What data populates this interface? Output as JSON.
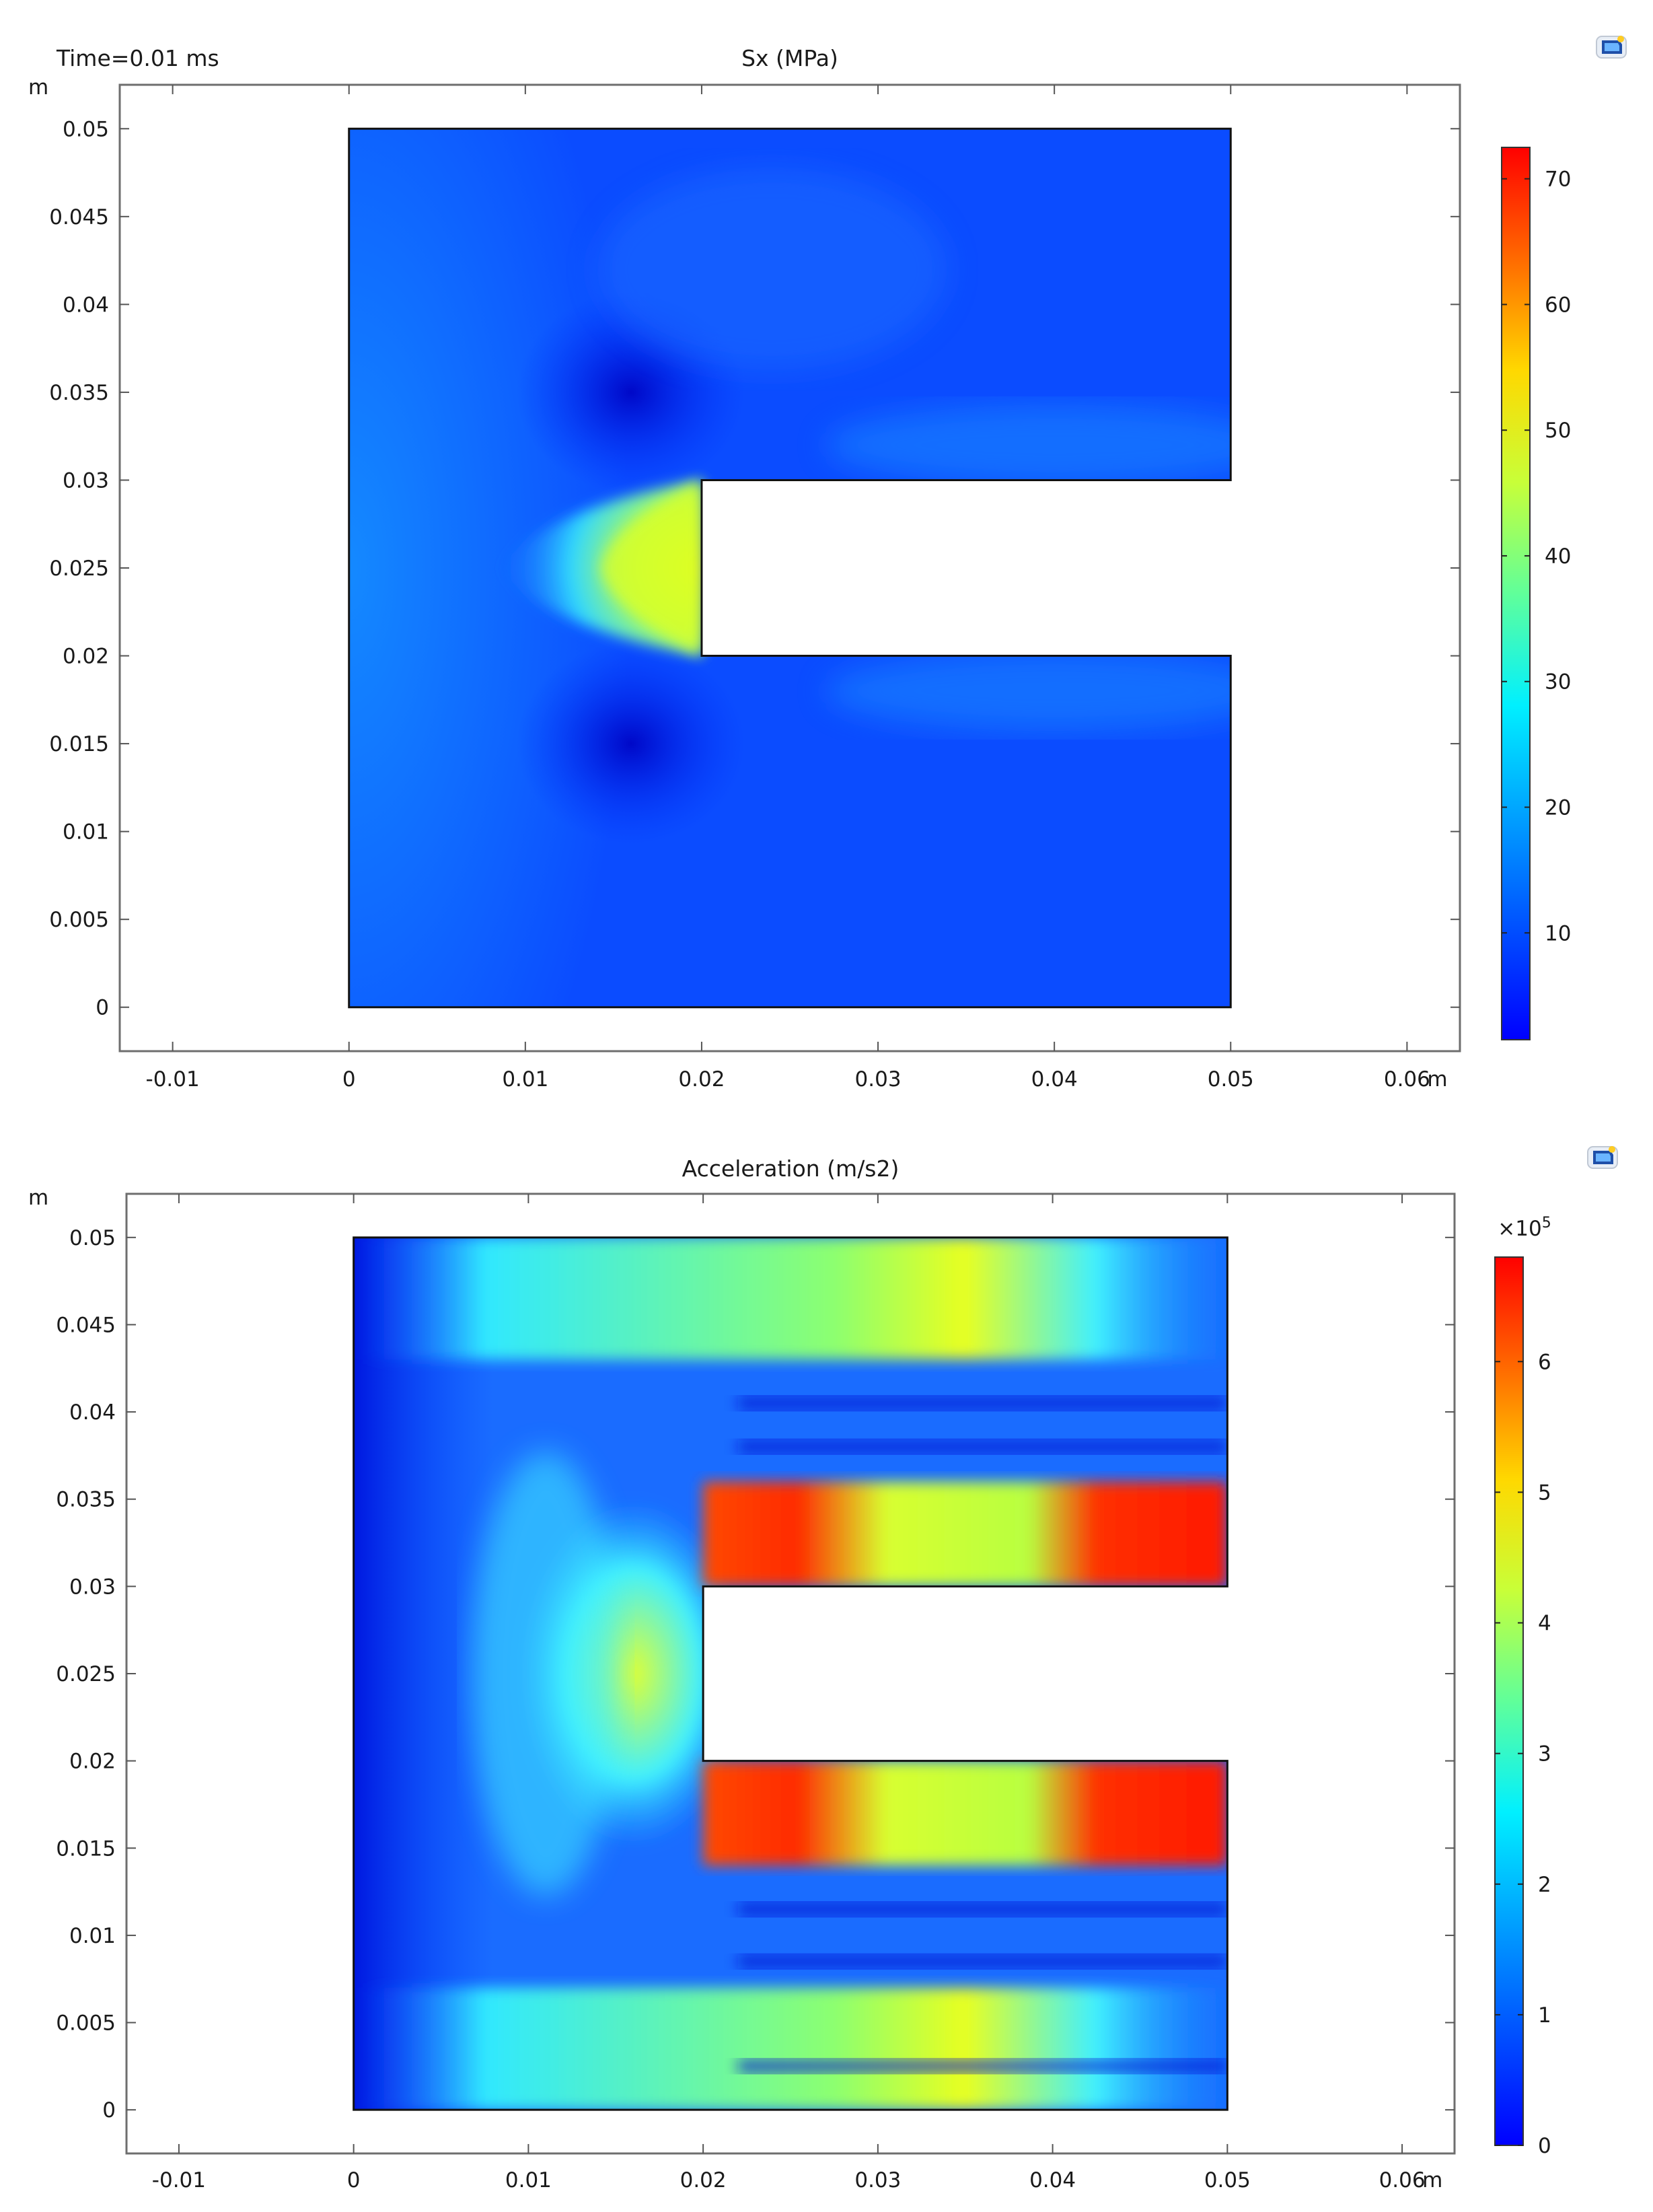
{
  "chart_data": [
    {
      "type": "heatmap",
      "time_label": "Time=0.01 ms",
      "title": "Sx (MPa)",
      "x_unit": "m",
      "y_unit": "m",
      "xlim": [
        -0.013,
        0.063
      ],
      "ylim": [
        -0.0025,
        0.0525
      ],
      "x_ticks": [
        -0.01,
        0,
        0.01,
        0.02,
        0.03,
        0.04,
        0.05,
        0.06
      ],
      "x_tick_labels": [
        "-0.01",
        "0",
        "0.01",
        "0.02",
        "0.03",
        "0.04",
        "0.05",
        "0.06"
      ],
      "y_ticks": [
        0,
        0.005,
        0.01,
        0.015,
        0.02,
        0.025,
        0.03,
        0.035,
        0.04,
        0.045,
        0.05
      ],
      "y_tick_labels": [
        "0",
        "0.005",
        "0.01",
        "0.015",
        "0.02",
        "0.025",
        "0.03",
        "0.035",
        "0.04",
        "0.045",
        "0.05"
      ],
      "geometry": {
        "outline": [
          [
            0,
            0
          ],
          [
            0.05,
            0
          ],
          [
            0.05,
            0.02
          ],
          [
            0.02,
            0.02
          ],
          [
            0.02,
            0.03
          ],
          [
            0.05,
            0.03
          ],
          [
            0.05,
            0.05
          ],
          [
            0,
            0.05
          ]
        ],
        "notch_x": [
          0.02,
          0.05
        ],
        "notch_y": [
          0.02,
          0.03
        ]
      },
      "colorbar": {
        "range": [
          1.5,
          72.5
        ],
        "ticks": [
          10,
          20,
          30,
          40,
          50,
          60,
          70
        ],
        "tick_labels": [
          "10",
          "20",
          "30",
          "40",
          "50",
          "60",
          "70"
        ],
        "exponent_label": ""
      },
      "field": {
        "background": 7,
        "features": [
          {
            "kind": "high-lobe",
            "x": 0.02,
            "y": 0.025,
            "peak": 50,
            "extent": 0.012
          },
          {
            "kind": "low-spot",
            "x": 0.016,
            "y": 0.035,
            "value": 4
          },
          {
            "kind": "low-spot",
            "x": 0.016,
            "y": 0.015,
            "value": 4
          }
        ]
      }
    },
    {
      "type": "heatmap",
      "title": "Acceleration (m/s2)",
      "x_unit": "m",
      "y_unit": "m",
      "xlim": [
        -0.013,
        0.063
      ],
      "ylim": [
        -0.0025,
        0.0525
      ],
      "x_ticks": [
        -0.01,
        0,
        0.01,
        0.02,
        0.03,
        0.04,
        0.05,
        0.06
      ],
      "x_tick_labels": [
        "-0.01",
        "0",
        "0.01",
        "0.02",
        "0.03",
        "0.04",
        "0.05",
        "0.06"
      ],
      "y_ticks": [
        0,
        0.005,
        0.01,
        0.015,
        0.02,
        0.025,
        0.03,
        0.035,
        0.04,
        0.045,
        0.05
      ],
      "y_tick_labels": [
        "0",
        "0.005",
        "0.01",
        "0.015",
        "0.02",
        "0.025",
        "0.03",
        "0.035",
        "0.04",
        "0.045",
        "0.05"
      ],
      "geometry": {
        "outline": [
          [
            0,
            0
          ],
          [
            0.05,
            0
          ],
          [
            0.05,
            0.02
          ],
          [
            0.02,
            0.02
          ],
          [
            0.02,
            0.03
          ],
          [
            0.05,
            0.03
          ],
          [
            0.05,
            0.05
          ],
          [
            0,
            0.05
          ]
        ],
        "notch_x": [
          0.02,
          0.05
        ],
        "notch_y": [
          0.02,
          0.03
        ]
      },
      "colorbar": {
        "range": [
          0,
          6.8
        ],
        "ticks": [
          0,
          1,
          2,
          3,
          4,
          5,
          6
        ],
        "tick_labels": [
          "0",
          "1",
          "2",
          "3",
          "4",
          "5",
          "6"
        ],
        "exponent_label": "×10",
        "exponent_power": "5"
      },
      "field": {
        "background": 1.2,
        "features": [
          {
            "kind": "high-region",
            "x": [
              0.02,
              0.05
            ],
            "y": [
              0.03,
              0.036
            ],
            "peak": 6.5
          },
          {
            "kind": "high-region",
            "x": [
              0.02,
              0.05
            ],
            "y": [
              0.014,
              0.02
            ],
            "peak": 6.5
          },
          {
            "kind": "mid-band",
            "x": [
              0.007,
              0.03
            ],
            "y": [
              0.043,
              0.05
            ],
            "value": 3.5
          },
          {
            "kind": "mid-band",
            "x": [
              0.007,
              0.03
            ],
            "y": [
              0,
              0.007
            ],
            "value": 3.5
          },
          {
            "kind": "mid-region",
            "x": [
              0.015,
              0.02
            ],
            "y": [
              0.02,
              0.03
            ],
            "value": 4.2
          }
        ]
      }
    }
  ]
}
